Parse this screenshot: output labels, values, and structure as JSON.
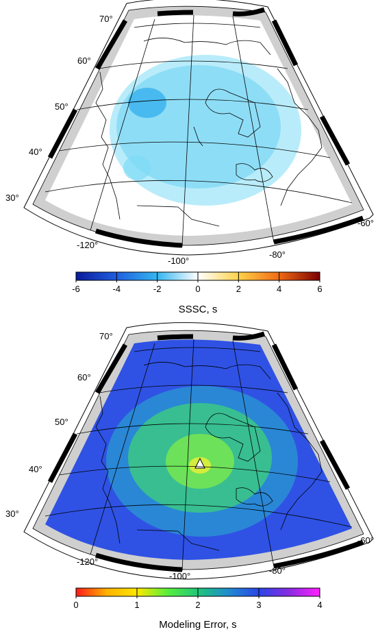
{
  "maps": [
    {
      "id": "sssc",
      "colorbar": {
        "ticks": [
          "-6",
          "-4",
          "-2",
          "0",
          "2",
          "4",
          "6"
        ],
        "title": "SSSC, s",
        "palette": "polar",
        "stops": [
          "#0a1a9a",
          "#1f5fe0",
          "#35b6ef",
          "#ffffff",
          "#ffd24a",
          "#f06a14",
          "#7a0000"
        ]
      },
      "lat_labels": [
        "70°",
        "60°",
        "50°",
        "40°",
        "30°"
      ],
      "lon_labels": [
        "-120°",
        "-100°",
        "-80°",
        "-60°"
      ],
      "field": "sssc"
    },
    {
      "id": "error",
      "colorbar": {
        "ticks": [
          "0",
          "1",
          "2",
          "3",
          "4"
        ],
        "title": "Modeling Error, s",
        "palette": "rainbow",
        "stops": [
          "#ff1a1a",
          "#ffb000",
          "#ffe800",
          "#58ee3c",
          "#1fc67a",
          "#1f8ccf",
          "#2a46e6",
          "#8a2be2",
          "#ff22ff"
        ]
      },
      "lat_labels": [
        "70°",
        "60°",
        "50°",
        "40°",
        "30°"
      ],
      "lon_labels": [
        "-120°",
        "-100°",
        "-80°",
        "-60°"
      ],
      "field": "error"
    }
  ]
}
